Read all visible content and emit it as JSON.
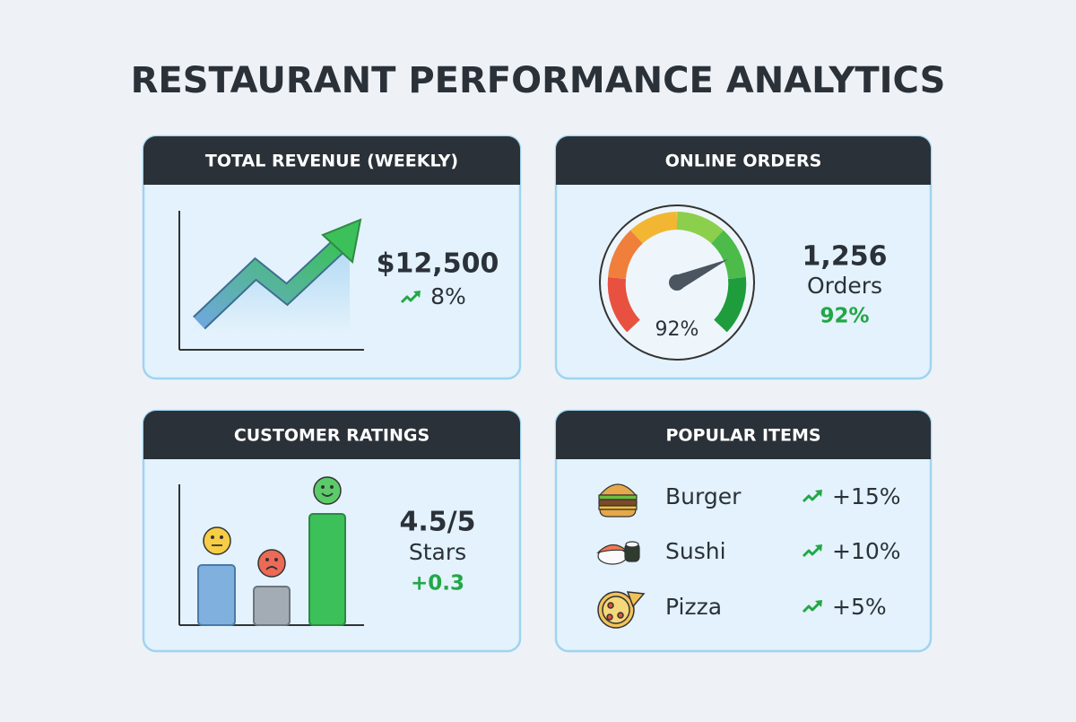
{
  "header": {
    "title": "RESTAURANT PERFORMANCE ANALYTICS"
  },
  "cards": [
    {
      "title": "TOTAL REVENUE (WEEKLY)",
      "value": "$12,500",
      "change": "8%"
    },
    {
      "title": "ONLINE ORDERS",
      "gauge_label": "92%",
      "value": "1,256",
      "unit": "Orders",
      "change": "92%"
    },
    {
      "title": "CUSTOMER RATINGS",
      "value": "4.5/5",
      "unit": "Stars",
      "change": "+0.3"
    },
    {
      "title": "POPULAR ITEMS",
      "items": [
        {
          "name": "Burger",
          "change": "+15%"
        },
        {
          "name": "Sushi",
          "change": "+10%"
        },
        {
          "name": "Pizza",
          "change": "+5%"
        }
      ]
    }
  ]
}
